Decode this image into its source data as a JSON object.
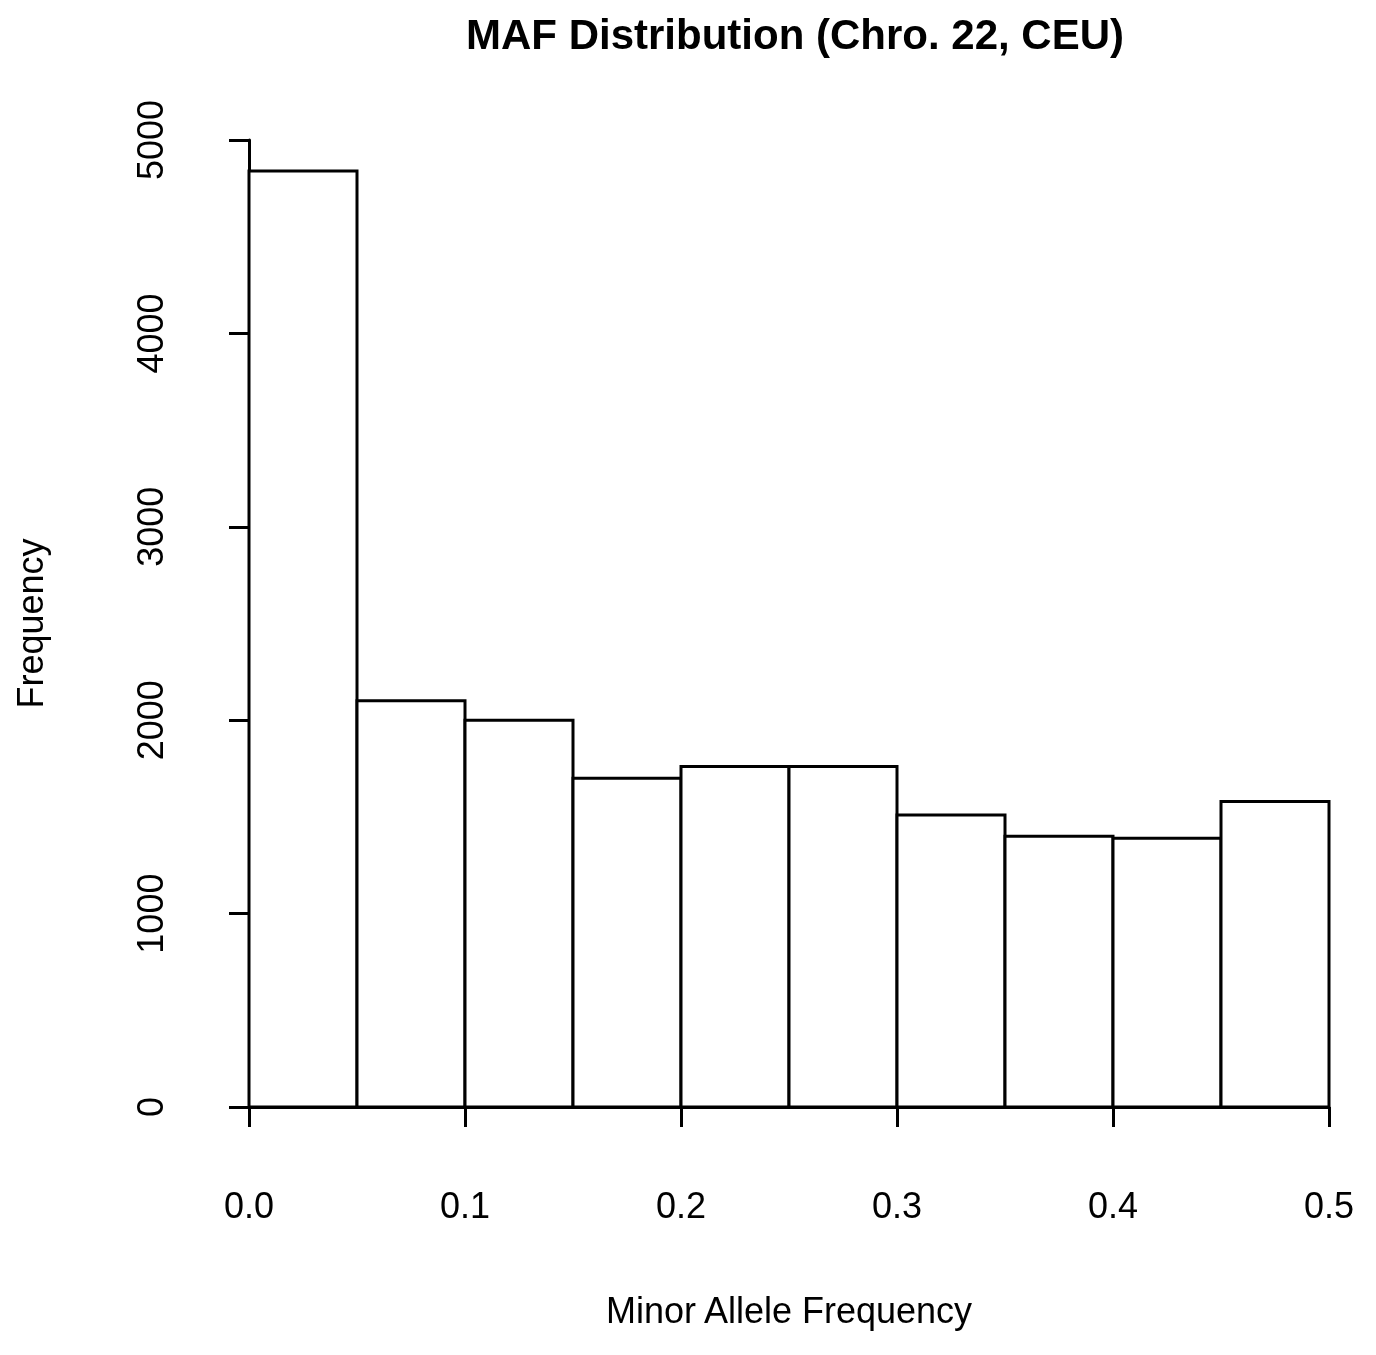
{
  "chart_data": {
    "type": "histogram",
    "title": "MAF Distribution (Chro. 22, CEU)",
    "xlabel": "Minor Allele Frequency",
    "ylabel": "Frequency",
    "bins": [
      0,
      0.05,
      0.1,
      0.15,
      0.2,
      0.25,
      0.3,
      0.35,
      0.4,
      0.45,
      0.5
    ],
    "values": [
      4840,
      2100,
      2000,
      1700,
      1760,
      1760,
      1510,
      1400,
      1390,
      1580
    ],
    "color": "#ffffff",
    "xlim": [
      0,
      0.5
    ],
    "xticks": [
      {
        "value": 0,
        "label": "0.0"
      },
      0.1,
      0.2,
      0.3,
      0.4,
      0.5
    ],
    "ylim": [
      0,
      5000
    ],
    "yticks": [
      0,
      1000,
      2000,
      3000,
      4000,
      5000
    ],
    "grid": false
  }
}
